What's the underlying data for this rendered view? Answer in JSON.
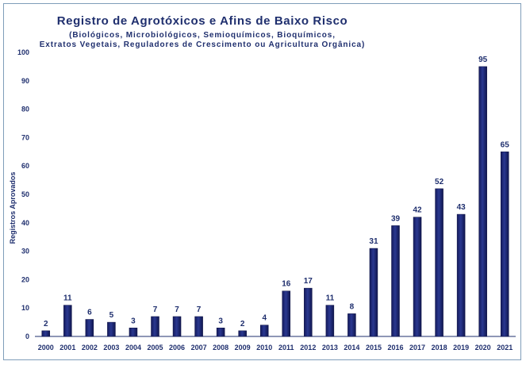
{
  "chart_data": {
    "type": "bar",
    "title": "Registro de Agrotóxicos e Afins de Baixo Risco",
    "subtitle_lines": [
      "(Biológicos, Microbiológicos, Semioquímicos, Bioquímicos,",
      "Extratos Vegetais, Reguladores de Crescimento ou Agricultura Orgânica)"
    ],
    "ylabel": "Registros Aprovados",
    "xlabel": "",
    "ylim": [
      0,
      100
    ],
    "yticks": [
      0,
      10,
      20,
      30,
      40,
      50,
      60,
      70,
      80,
      90,
      100
    ],
    "grid": false,
    "categories": [
      "2000",
      "2001",
      "2002",
      "2003",
      "2004",
      "2005",
      "2006",
      "2007",
      "2008",
      "2009",
      "2010",
      "2011",
      "2012",
      "2013",
      "2014",
      "2015",
      "2016",
      "2017",
      "2018",
      "2019",
      "2020",
      "2021"
    ],
    "values": [
      2,
      11,
      6,
      5,
      3,
      7,
      7,
      7,
      3,
      2,
      4,
      16,
      17,
      11,
      8,
      31,
      39,
      42,
      52,
      43,
      95,
      65
    ],
    "bar_color": "#1b1f6b",
    "bar_highlight": "#4a5fb0",
    "text_color": "#1f2f6e"
  }
}
